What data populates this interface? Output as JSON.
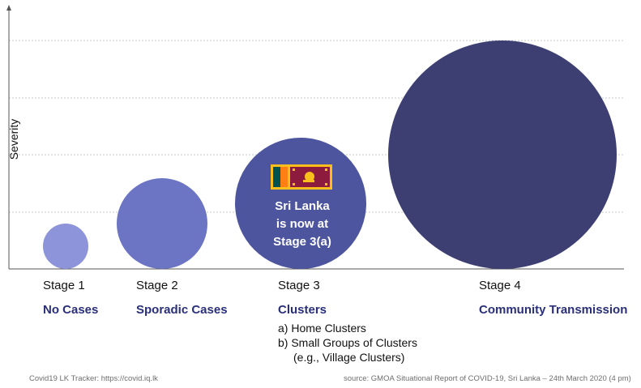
{
  "chart_data": {
    "type": "bubble",
    "ylabel": "Severity",
    "grid": true,
    "stages": [
      {
        "stage": "Stage 1",
        "name": "No Cases",
        "severity": 1,
        "color": "#8d94da",
        "details": []
      },
      {
        "stage": "Stage 2",
        "name": "Sporadic Cases",
        "severity": 2,
        "color": "#6c75c4",
        "details": []
      },
      {
        "stage": "Stage 3",
        "name": "Clusters",
        "severity": 3,
        "color": "#4e559f",
        "details": [
          "a) Home Clusters",
          "b) Small Groups of Clusters",
          "(e.g., Village Clusters)"
        ]
      },
      {
        "stage": "Stage 4",
        "name": "Community Transmission",
        "severity": 4,
        "color": "#3d3f72",
        "details": []
      }
    ],
    "callout": [
      "Sri Lanka",
      "is now at",
      "Stage 3(a)"
    ]
  },
  "colors": {
    "title_blue": "#2a2f7a",
    "grid": "#c9c9c9",
    "axis": "#555555",
    "flag_bg": "#fbbf1c",
    "flag_maroon": "#8d1b3d",
    "flag_green": "#00534e",
    "flag_orange": "#ff7f14"
  },
  "footer": {
    "left": "Covid19 LK Tracker: https://covid.iq.lk",
    "right": "source: GMOA Situational Report of COVID-19, Sri Lanka – 24th March 2020 (4 pm)"
  }
}
